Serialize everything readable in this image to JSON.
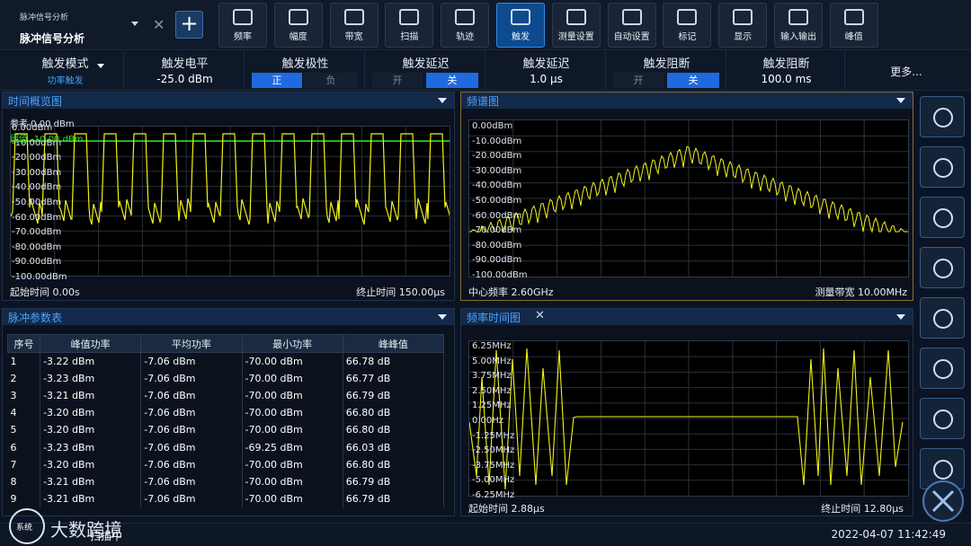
{
  "mode": {
    "small": "脉冲信号分析",
    "title": "脉冲信号分析"
  },
  "toolbar": [
    {
      "label": "频率",
      "icon": "frequency-icon",
      "active": false
    },
    {
      "label": "幅度",
      "icon": "amplitude-icon",
      "active": false
    },
    {
      "label": "带宽",
      "icon": "bandwidth-icon",
      "active": false
    },
    {
      "label": "扫描",
      "icon": "sweep-icon",
      "active": false
    },
    {
      "label": "轨迹",
      "icon": "trace-icon",
      "active": false
    },
    {
      "label": "触发",
      "icon": "trigger-icon",
      "active": true
    },
    {
      "label": "测量设置",
      "icon": "measure-setup-icon",
      "active": false
    },
    {
      "label": "自动设置",
      "icon": "auto-setup-icon",
      "active": false
    },
    {
      "label": "标记",
      "icon": "marker-icon",
      "active": false
    },
    {
      "label": "显示",
      "icon": "display-icon",
      "active": false
    },
    {
      "label": "输入输出",
      "icon": "io-icon",
      "active": false
    },
    {
      "label": "峰值",
      "icon": "peak-icon",
      "active": false
    }
  ],
  "params": {
    "trig_mode": {
      "label": "触发模式",
      "value": "功率触发"
    },
    "trig_level": {
      "label": "触发电平",
      "value": "-25.0 dBm"
    },
    "polarity": {
      "label": "触发极性",
      "on": "正",
      "off": "负"
    },
    "delay_switch": {
      "label": "触发延迟",
      "on": "开",
      "off": "关"
    },
    "delay_value": {
      "label": "触发延迟",
      "value": "1.0 µs"
    },
    "holdoff_switch": {
      "label": "触发阻断",
      "on": "开",
      "off": "关"
    },
    "holdoff_value": {
      "label": "触发阻断",
      "value": "100.0 ms"
    },
    "more": "更多..."
  },
  "time_panel": {
    "title": "时间概览图",
    "ref": "参考 0.00 dBm",
    "threshold": "阈值 -10.00 dBm",
    "y_labels": [
      "0.00dBm",
      "-10.00dBm",
      "-20.00dBm",
      "-30.00dBm",
      "-40.00dBm",
      "-50.00dBm",
      "-60.00dBm",
      "-70.00dBm",
      "-80.00dBm",
      "-90.00dBm",
      "-100.00dBm"
    ],
    "start": "起始时间 0.00s",
    "stop": "终止时间 150.00µs"
  },
  "spectrum_panel": {
    "title": "频谱图",
    "y_labels": [
      "0.00dBm",
      "-10.00dBm",
      "-20.00dBm",
      "-30.00dBm",
      "-40.00dBm",
      "-50.00dBm",
      "-60.00dBm",
      "-70.00dBm",
      "-80.00dBm",
      "-90.00dBm",
      "-100.00dBm"
    ],
    "center": "中心频率 2.60GHz",
    "span": "测量带宽 10.00MHz"
  },
  "pulse_table": {
    "title": "脉冲参数表",
    "headers": [
      "序号",
      "峰值功率",
      "平均功率",
      "最小功率",
      "峰峰值"
    ],
    "rows": [
      [
        "1",
        "-3.22 dBm",
        "-7.06 dBm",
        "-70.00 dBm",
        "66.78 dB"
      ],
      [
        "2",
        "-3.23 dBm",
        "-7.06 dBm",
        "-70.00 dBm",
        "66.77 dB"
      ],
      [
        "3",
        "-3.21 dBm",
        "-7.06 dBm",
        "-70.00 dBm",
        "66.79 dB"
      ],
      [
        "4",
        "-3.20 dBm",
        "-7.06 dBm",
        "-70.00 dBm",
        "66.80 dB"
      ],
      [
        "5",
        "-3.20 dBm",
        "-7.06 dBm",
        "-70.00 dBm",
        "66.80 dB"
      ],
      [
        "6",
        "-3.23 dBm",
        "-7.06 dBm",
        "-69.25 dBm",
        "66.03 dB"
      ],
      [
        "7",
        "-3.20 dBm",
        "-7.06 dBm",
        "-70.00 dBm",
        "66.80 dB"
      ],
      [
        "8",
        "-3.21 dBm",
        "-7.06 dBm",
        "-70.00 dBm",
        "66.79 dB"
      ],
      [
        "9",
        "-3.21 dBm",
        "-7.06 dBm",
        "-70.00 dBm",
        "66.79 dB"
      ]
    ]
  },
  "freqtime_panel": {
    "title": "频率时间图",
    "y_labels": [
      "6.25MHz",
      "5.00MHz",
      "3.75MHz",
      "2.50MHz",
      "1.25MHz",
      "0.00Hz",
      "-1.25MHz",
      "-2.50MHz",
      "-3.75MHz",
      "-5.00MHz",
      "-6.25MHz"
    ],
    "start": "起始时间 2.88µs",
    "stop": "终止时间 12.80µs"
  },
  "rail": [
    "home-icon",
    "arrow-right-icon",
    "refresh-icon",
    "save-icon",
    "folder-icon",
    "screenshot-icon",
    "print-icon",
    "scpi-icon"
  ],
  "status": {
    "left": "扫描中",
    "time": "2022-04-07 11:42:49"
  },
  "logo": {
    "text": "大数跨境",
    "badge": "系统"
  },
  "colors": {
    "trace": "#f2f21a",
    "threshold": "#2fe02f",
    "accent": "#1f6ae0",
    "panel_title": "#4aa3ff"
  }
}
